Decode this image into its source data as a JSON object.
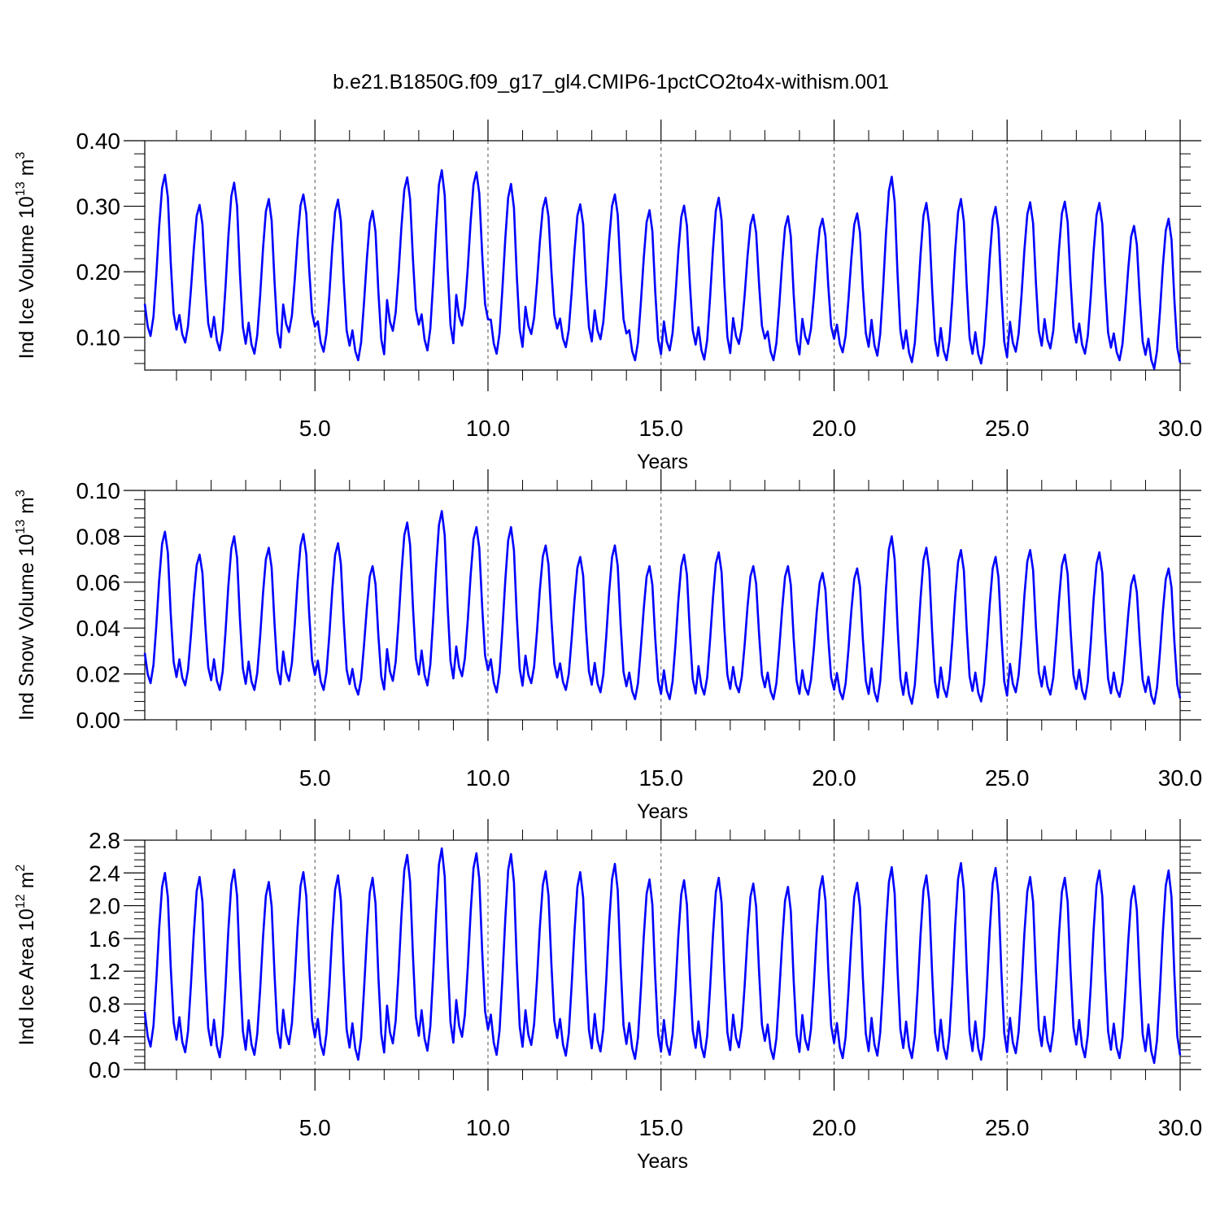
{
  "title": "b.e21.B1850G.f09_g17_gl4.CMIP6-1pctCO2to4x-withism.001",
  "colors": {
    "series": "#0000ff",
    "axis": "#000000",
    "grid": "#555555"
  },
  "chart_data": [
    {
      "type": "line",
      "ylabel": {
        "text": "Ind Ice Volume 10",
        "sup": "13",
        "unit": " m",
        "unit_sup": "3"
      },
      "xlabel": "Years",
      "xlim": [
        0.083,
        30.0
      ],
      "ylim": [
        0.05,
        0.4
      ],
      "yticks": [
        0.1,
        0.2,
        0.3,
        0.4
      ],
      "ytick_labels": [
        "0.10",
        "0.20",
        "0.30",
        "0.40"
      ],
      "xticks": [
        5.0,
        10.0,
        15.0,
        20.0,
        25.0,
        30.0
      ],
      "xtick_labels": [
        "5.0",
        "10.0",
        "15.0",
        "20.0",
        "25.0",
        "30.0"
      ],
      "grid": "vertical dashed at x ticks",
      "series": [
        {
          "samples_per_year": 12,
          "cycle_peaks": [
            0.348,
            0.302,
            0.336,
            0.311,
            0.318,
            0.31,
            0.293,
            0.344,
            0.355,
            0.352,
            0.334,
            0.313,
            0.303,
            0.318,
            0.294,
            0.301,
            0.313,
            0.287,
            0.285,
            0.281,
            0.289,
            0.345,
            0.305,
            0.311,
            0.299,
            0.306,
            0.307,
            0.305,
            0.27,
            0.281
          ],
          "cycle_troughs": [
            0.102,
            0.092,
            0.08,
            0.075,
            0.108,
            0.078,
            0.065,
            0.11,
            0.08,
            0.118,
            0.075,
            0.105,
            0.085,
            0.097,
            0.065,
            0.08,
            0.066,
            0.09,
            0.065,
            0.09,
            0.077,
            0.072,
            0.062,
            0.065,
            0.06,
            0.078,
            0.083,
            0.075,
            0.065,
            0.052
          ]
        }
      ]
    },
    {
      "type": "line",
      "ylabel": {
        "text": "Ind Snow Volume 10",
        "sup": "13",
        "unit": " m",
        "unit_sup": "3"
      },
      "xlabel": "Years",
      "xlim": [
        0.083,
        30.0
      ],
      "ylim": [
        0.0,
        0.1
      ],
      "yticks": [
        0.0,
        0.02,
        0.04,
        0.06,
        0.08,
        0.1
      ],
      "ytick_labels": [
        "0.00",
        "0.02",
        "0.04",
        "0.06",
        "0.08",
        "0.10"
      ],
      "xticks": [
        5.0,
        10.0,
        15.0,
        20.0,
        25.0,
        30.0
      ],
      "xtick_labels": [
        "5.0",
        "10.0",
        "15.0",
        "20.0",
        "25.0",
        "30.0"
      ],
      "grid": "vertical dashed at x ticks",
      "series": [
        {
          "samples_per_year": 12,
          "cycle_peaks": [
            0.082,
            0.072,
            0.08,
            0.075,
            0.081,
            0.077,
            0.067,
            0.086,
            0.091,
            0.084,
            0.084,
            0.076,
            0.071,
            0.076,
            0.067,
            0.072,
            0.073,
            0.067,
            0.067,
            0.064,
            0.066,
            0.08,
            0.075,
            0.074,
            0.071,
            0.074,
            0.072,
            0.073,
            0.063,
            0.066
          ],
          "cycle_troughs": [
            0.016,
            0.015,
            0.013,
            0.013,
            0.017,
            0.013,
            0.011,
            0.017,
            0.015,
            0.019,
            0.012,
            0.016,
            0.013,
            0.012,
            0.009,
            0.009,
            0.011,
            0.012,
            0.009,
            0.011,
            0.009,
            0.008,
            0.007,
            0.01,
            0.008,
            0.012,
            0.011,
            0.009,
            0.01,
            0.007
          ]
        }
      ]
    },
    {
      "type": "line",
      "ylabel": {
        "text": "Ind Ice Area 10",
        "sup": "12",
        "unit": " m",
        "unit_sup": "2"
      },
      "xlabel": "Years",
      "xlim": [
        0.083,
        30.0
      ],
      "ylim": [
        0.0,
        2.8
      ],
      "yticks": [
        0.0,
        0.4,
        0.8,
        1.2,
        1.6,
        2.0,
        2.4,
        2.8
      ],
      "ytick_labels": [
        "0.0",
        "0.4",
        "0.8",
        "1.2",
        "1.6",
        "2.0",
        "2.4",
        "2.8"
      ],
      "xticks": [
        5.0,
        10.0,
        15.0,
        20.0,
        25.0,
        30.0
      ],
      "xtick_labels": [
        "5.0",
        "10.0",
        "15.0",
        "20.0",
        "25.0",
        "30.0"
      ],
      "grid": "vertical dashed at x ticks",
      "series": [
        {
          "samples_per_year": 12,
          "cycle_peaks": [
            2.4,
            2.35,
            2.44,
            2.29,
            2.41,
            2.37,
            2.34,
            2.62,
            2.7,
            2.64,
            2.63,
            2.42,
            2.41,
            2.51,
            2.32,
            2.31,
            2.34,
            2.27,
            2.23,
            2.36,
            2.28,
            2.47,
            2.37,
            2.52,
            2.46,
            2.35,
            2.34,
            2.43,
            2.24,
            2.43
          ],
          "cycle_troughs": [
            0.28,
            0.21,
            0.15,
            0.18,
            0.31,
            0.18,
            0.12,
            0.32,
            0.23,
            0.4,
            0.18,
            0.3,
            0.17,
            0.22,
            0.13,
            0.18,
            0.15,
            0.27,
            0.13,
            0.24,
            0.14,
            0.17,
            0.14,
            0.13,
            0.12,
            0.2,
            0.22,
            0.15,
            0.14,
            0.08
          ]
        }
      ]
    }
  ]
}
